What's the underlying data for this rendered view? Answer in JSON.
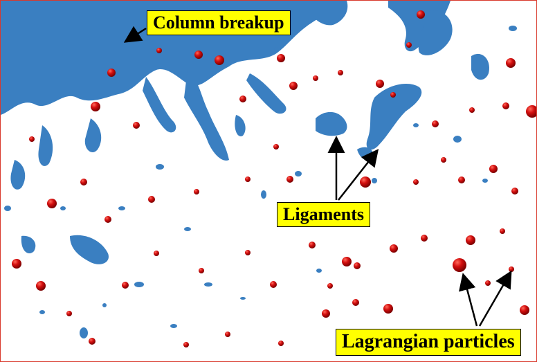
{
  "labels": {
    "column_breakup": "Column breakup",
    "ligaments": "Ligaments",
    "lagrangian_particles": "Lagrangian particles"
  },
  "colors": {
    "liquid_surface": "#3a7fc1",
    "particle": "#d40f0f",
    "label_background": "#ffff00",
    "frame": "#d9382b"
  }
}
